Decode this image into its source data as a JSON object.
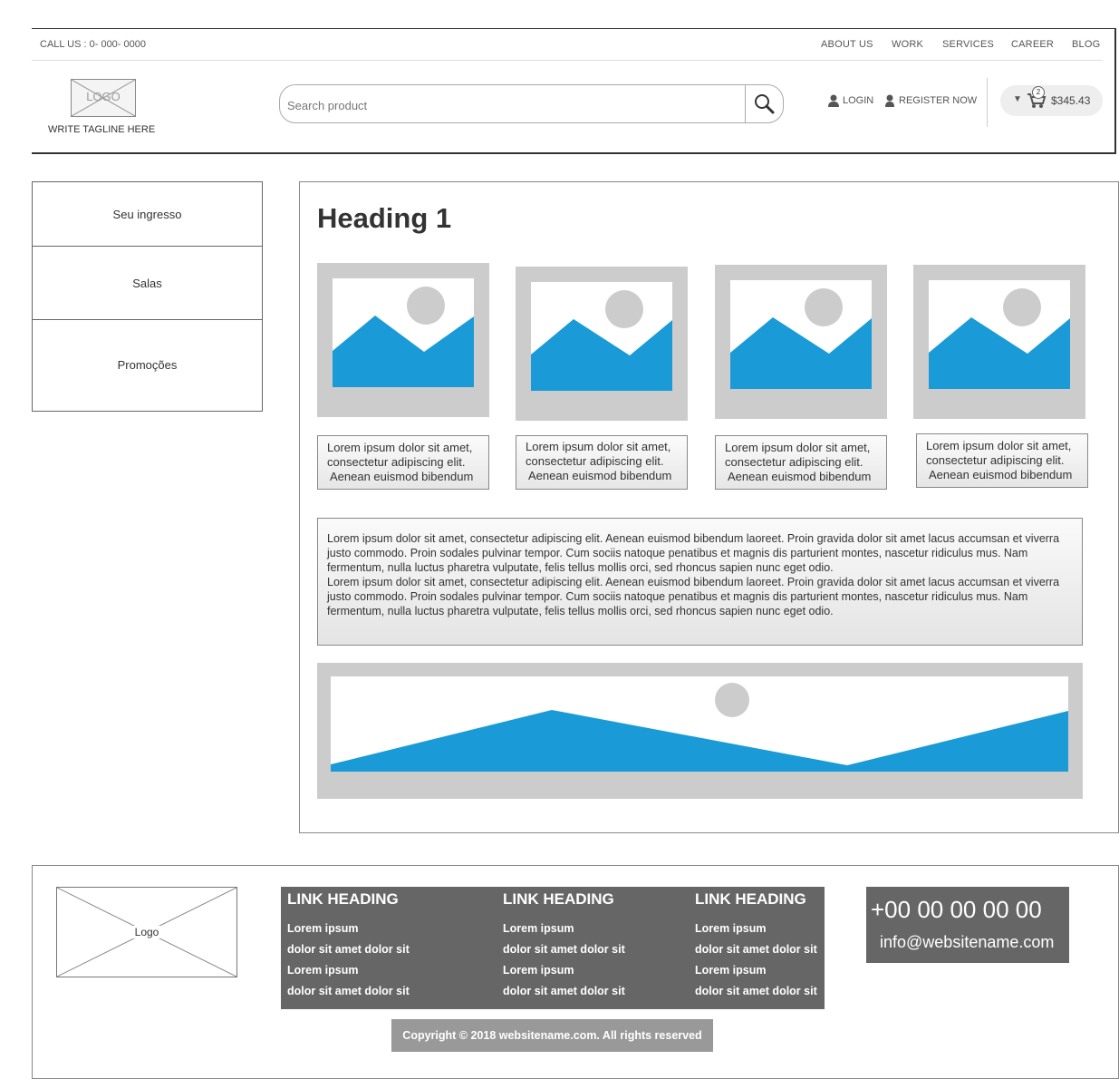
{
  "header": {
    "call_us": "CALL US : 0- 000- 0000",
    "nav": [
      "ABOUT US",
      "WORK",
      "SERVICES",
      "CAREER",
      "BLOG"
    ],
    "logo_text": "LOGO",
    "tagline": "WRITE TAGLINE HERE",
    "search_placeholder": "Search product",
    "login": "LOGIN",
    "register": "REGISTER NOW",
    "cart_count": "2",
    "cart_total": "$345.43"
  },
  "sidebar": {
    "items": [
      "Seu ingresso",
      "Salas",
      "Promoções"
    ]
  },
  "main": {
    "heading": "Heading 1",
    "cards": [
      {
        "line1": "Lorem ipsum dolor sit amet,",
        "line2": "consectetur adipiscing elit.",
        "line3": "Aenean euismod bibendum"
      },
      {
        "line1": "Lorem ipsum dolor sit amet,",
        "line2": "consectetur adipiscing elit.",
        "line3": "Aenean euismod bibendum"
      },
      {
        "line1": "Lorem ipsum dolor sit amet,",
        "line2": "consectetur adipiscing elit.",
        "line3": "Aenean euismod bibendum"
      },
      {
        "line1": "Lorem ipsum dolor sit amet,",
        "line2": "consectetur adipiscing elit.",
        "line3": "Aenean euismod bibendum"
      }
    ],
    "paragraphs": [
      "Lorem ipsum dolor sit amet, consectetur adipiscing elit. Aenean euismod bibendum laoreet. Proin gravida dolor sit amet lacus accumsan et viverra justo commodo. Proin sodales pulvinar tempor. Cum sociis natoque penatibus et magnis dis parturient montes, nascetur ridiculus mus. Nam fermentum, nulla luctus pharetra vulputate, felis tellus mollis orci, sed rhoncus sapien nunc eget odio.",
      "Lorem ipsum dolor sit amet, consectetur adipiscing elit. Aenean euismod bibendum laoreet. Proin gravida dolor sit amet lacus accumsan et viverra justo commodo. Proin sodales pulvinar tempor. Cum sociis natoque penatibus et magnis dis parturient montes, nascetur ridiculus mus. Nam fermentum, nulla luctus pharetra vulputate, felis tellus mollis orci, sed rhoncus sapien nunc eget odio."
    ]
  },
  "footer": {
    "logo_text": "Logo",
    "link_columns": [
      {
        "heading": "LINK HEADING",
        "items": [
          "Lorem ipsum",
          "dolor sit amet dolor sit",
          "Lorem ipsum",
          "dolor sit amet dolor sit"
        ]
      },
      {
        "heading": "LINK HEADING",
        "items": [
          "Lorem ipsum",
          "dolor sit amet dolor sit",
          "Lorem ipsum",
          "dolor sit amet dolor sit"
        ]
      },
      {
        "heading": "LINK HEADING",
        "items": [
          "Lorem ipsum",
          "dolor sit amet dolor sit",
          "Lorem ipsum",
          "dolor sit amet dolor sit"
        ]
      }
    ],
    "phone": "+00 00 00 00 00",
    "email": "info@websitename.com",
    "copyright": "Copyright © 2018 websitename.com. All rights reserved"
  },
  "colors": {
    "image_blue": "#1a9ad6",
    "placeholder_gray": "#cccccc",
    "footer_dark": "#666666",
    "copyright_bg": "#999999"
  }
}
